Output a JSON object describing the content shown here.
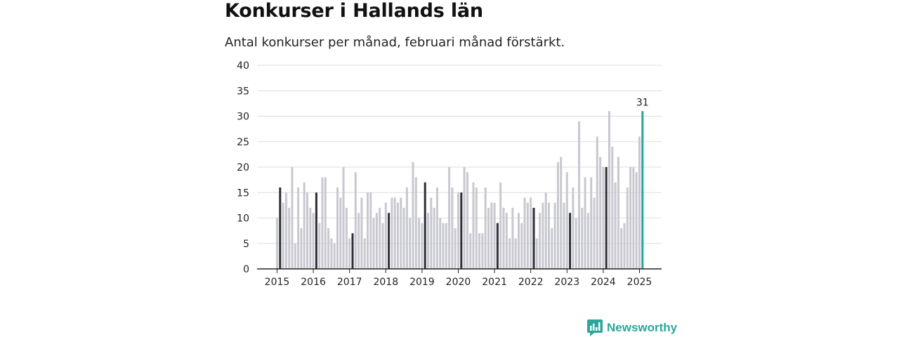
{
  "title": "Konkurser i Hallands län",
  "subtitle": "Antal konkurser per månad, februari månad förstärkt.",
  "brand": {
    "name": "Newsworthy",
    "icon": "newsworthy-logo-icon"
  },
  "colors": {
    "regular": "#c8c8d0",
    "february": "#2e2e38",
    "latest": "#1fa89a",
    "grid": "#dddddd"
  },
  "chart_data": {
    "type": "bar",
    "title": "Konkurser i Hallands län",
    "subtitle": "Antal konkurser per månad, februari månad förstärkt.",
    "ylim": [
      0,
      40
    ],
    "yticks": [
      0,
      5,
      10,
      15,
      20,
      25,
      30,
      35,
      40
    ],
    "xticks": [
      "2015",
      "2016",
      "2017",
      "2018",
      "2019",
      "2020",
      "2021",
      "2022",
      "2023",
      "2024",
      "2025"
    ],
    "grid": true,
    "start": "2015-01",
    "highlight": "februari",
    "last_value_label": "31",
    "values": [
      10,
      16,
      13,
      15,
      12,
      20,
      5,
      16,
      8,
      17,
      15,
      12,
      11,
      15,
      9,
      18,
      18,
      8,
      6,
      5,
      16,
      14,
      20,
      12,
      6,
      7,
      19,
      11,
      14,
      6,
      15,
      15,
      10,
      11,
      12,
      9,
      13,
      11,
      14,
      14,
      13,
      14,
      12,
      16,
      10,
      21,
      18,
      10,
      9,
      17,
      11,
      14,
      12,
      16,
      10,
      9,
      9,
      20,
      16,
      8,
      15,
      15,
      20,
      19,
      7,
      17,
      16,
      7,
      7,
      16,
      12,
      13,
      13,
      9,
      17,
      12,
      11,
      6,
      12,
      6,
      11,
      9,
      14,
      13,
      14,
      12,
      6,
      11,
      13,
      15,
      13,
      8,
      13,
      21,
      22,
      13,
      19,
      11,
      16,
      10,
      29,
      12,
      18,
      11,
      18,
      14,
      26,
      22,
      20,
      20,
      31,
      24,
      17,
      22,
      8,
      9,
      16,
      20,
      20,
      19,
      26,
      31
    ]
  }
}
